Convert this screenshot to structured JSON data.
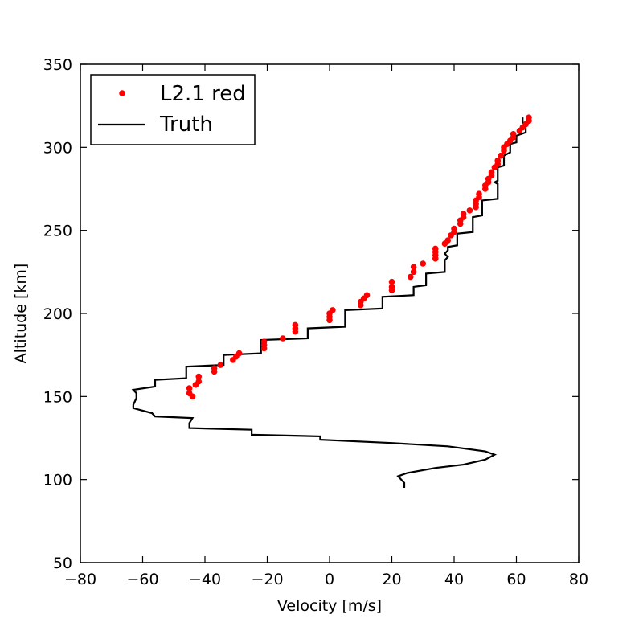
{
  "chart_data": {
    "type": "line",
    "title": "",
    "xlabel": "Velocity [m/s]",
    "ylabel": "Altitude [km]",
    "xlim": [
      -80,
      80
    ],
    "ylim": [
      50,
      350
    ],
    "xticks": [
      -80,
      -60,
      -40,
      -20,
      0,
      20,
      40,
      60,
      80
    ],
    "xtick_labels": [
      "−80",
      "−60",
      "−40",
      "−20",
      "0",
      "20",
      "40",
      "60",
      "80"
    ],
    "yticks": [
      50,
      100,
      150,
      200,
      250,
      300,
      350
    ],
    "ytick_labels": [
      "50",
      "100",
      "150",
      "200",
      "250",
      "300",
      "350"
    ],
    "grid": false,
    "legend_position": "top-left",
    "series": [
      {
        "name": "L2.1 red",
        "style": "markers",
        "color": "#ff0000",
        "points": [
          [
            -45,
            155
          ],
          [
            -45,
            152
          ],
          [
            -44,
            150
          ],
          [
            -43,
            157
          ],
          [
            -42,
            159
          ],
          [
            -42,
            162
          ],
          [
            -37,
            165
          ],
          [
            -37,
            167
          ],
          [
            -35,
            169
          ],
          [
            -31,
            172
          ],
          [
            -30,
            174
          ],
          [
            -29,
            176
          ],
          [
            -21,
            179
          ],
          [
            -21,
            181
          ],
          [
            -21,
            183
          ],
          [
            -15,
            185
          ],
          [
            -11,
            189
          ],
          [
            -11,
            191
          ],
          [
            -11,
            193
          ],
          [
            0,
            196
          ],
          [
            0,
            198
          ],
          [
            0,
            200
          ],
          [
            1,
            202
          ],
          [
            10,
            205
          ],
          [
            10,
            207
          ],
          [
            11,
            209
          ],
          [
            12,
            211
          ],
          [
            20,
            214
          ],
          [
            20,
            216
          ],
          [
            20,
            219
          ],
          [
            26,
            222
          ],
          [
            27,
            225
          ],
          [
            27,
            228
          ],
          [
            30,
            230
          ],
          [
            34,
            233
          ],
          [
            34,
            235
          ],
          [
            34,
            237
          ],
          [
            34,
            239
          ],
          [
            37,
            242
          ],
          [
            38,
            244
          ],
          [
            39,
            247
          ],
          [
            40,
            249
          ],
          [
            40,
            251
          ],
          [
            42,
            254
          ],
          [
            42,
            256
          ],
          [
            43,
            258
          ],
          [
            43,
            260
          ],
          [
            45,
            262
          ],
          [
            47,
            264
          ],
          [
            47,
            266
          ],
          [
            47,
            268
          ],
          [
            48,
            270
          ],
          [
            48,
            272
          ],
          [
            50,
            275
          ],
          [
            50,
            277
          ],
          [
            51,
            279
          ],
          [
            51,
            281
          ],
          [
            52,
            283
          ],
          [
            52,
            285
          ],
          [
            53,
            288
          ],
          [
            54,
            290
          ],
          [
            54,
            292
          ],
          [
            55,
            295
          ],
          [
            56,
            298
          ],
          [
            56,
            300
          ],
          [
            57,
            302
          ],
          [
            58,
            304
          ],
          [
            59,
            306
          ],
          [
            59,
            308
          ],
          [
            61,
            310
          ],
          [
            62,
            312
          ],
          [
            63,
            314
          ],
          [
            64,
            316
          ],
          [
            64,
            318
          ]
        ]
      },
      {
        "name": "Truth",
        "style": "line",
        "color": "#000000",
        "points": [
          [
            24,
            95
          ],
          [
            24,
            98
          ],
          [
            23,
            100
          ],
          [
            22,
            102
          ],
          [
            25,
            104
          ],
          [
            34,
            107
          ],
          [
            43,
            109
          ],
          [
            50,
            112
          ],
          [
            53,
            115
          ],
          [
            50,
            117
          ],
          [
            38,
            120
          ],
          [
            20,
            122
          ],
          [
            -3,
            124
          ],
          [
            -3,
            126
          ],
          [
            -25,
            127
          ],
          [
            -25,
            130
          ],
          [
            -45,
            131
          ],
          [
            -45,
            134
          ],
          [
            -44,
            137
          ],
          [
            -56,
            138
          ],
          [
            -57,
            140
          ],
          [
            -63,
            143
          ],
          [
            -63,
            145
          ],
          [
            -62,
            149
          ],
          [
            -62,
            152
          ],
          [
            -63,
            154
          ],
          [
            -56,
            156
          ],
          [
            -56,
            160
          ],
          [
            -46,
            161
          ],
          [
            -46,
            168
          ],
          [
            -34,
            169
          ],
          [
            -34,
            175
          ],
          [
            -22,
            176
          ],
          [
            -22,
            184
          ],
          [
            -7,
            185
          ],
          [
            -7,
            191
          ],
          [
            5,
            192
          ],
          [
            5,
            202
          ],
          [
            17,
            203
          ],
          [
            17,
            210
          ],
          [
            27,
            211
          ],
          [
            27,
            216
          ],
          [
            31,
            217
          ],
          [
            31,
            224
          ],
          [
            37,
            225
          ],
          [
            37,
            232
          ],
          [
            38,
            234
          ],
          [
            37,
            236
          ],
          [
            38,
            238
          ],
          [
            38,
            240
          ],
          [
            41,
            241
          ],
          [
            41,
            248
          ],
          [
            46,
            249
          ],
          [
            46,
            258
          ],
          [
            49,
            259
          ],
          [
            49,
            268
          ],
          [
            54,
            269
          ],
          [
            54,
            278
          ],
          [
            53,
            279
          ],
          [
            54,
            280
          ],
          [
            54,
            288
          ],
          [
            56,
            289
          ],
          [
            56,
            295
          ],
          [
            58,
            297
          ],
          [
            58,
            302
          ],
          [
            60,
            303
          ],
          [
            60,
            307
          ],
          [
            63,
            309
          ],
          [
            63,
            313
          ],
          [
            62,
            315
          ],
          [
            62,
            318
          ]
        ]
      }
    ]
  }
}
